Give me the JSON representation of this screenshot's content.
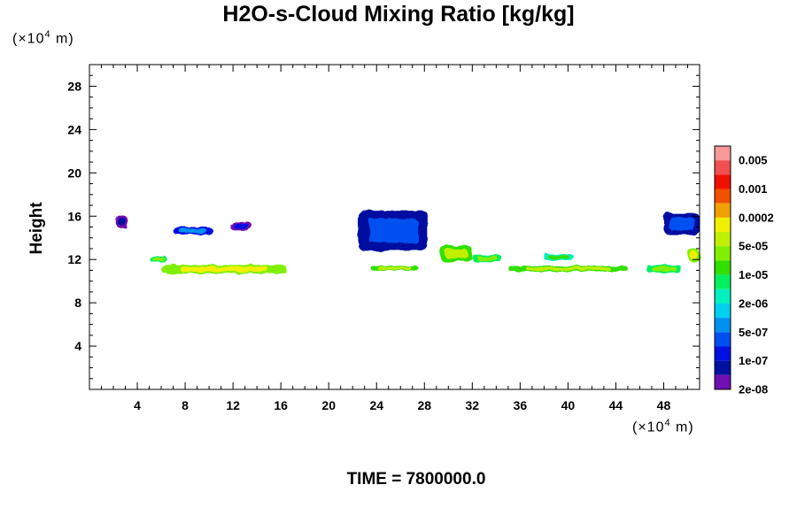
{
  "chart_data": {
    "type": "heatmap",
    "title": "H2O-s-Cloud Mixing Ratio [kg/kg]",
    "ylabel": "Height",
    "x_unit": {
      "prefix": "(×10",
      "exp": "4",
      "suffix": " m)"
    },
    "y_unit": {
      "prefix": "(×10",
      "exp": "4",
      "suffix": " m)"
    },
    "xlim": [
      0,
      51
    ],
    "ylim": [
      0,
      30
    ],
    "x_ticks": [
      4,
      8,
      12,
      16,
      20,
      24,
      28,
      32,
      36,
      40,
      44,
      48
    ],
    "y_ticks": [
      4,
      8,
      12,
      16,
      20,
      24,
      28
    ],
    "colorbar": {
      "levels": [
        "0.005",
        "0.001",
        "0.0002",
        "5e-05",
        "1e-05",
        "2e-06",
        "5e-07",
        "1e-07",
        "2e-08"
      ],
      "colors": [
        "#f89898",
        "#f05050",
        "#f01000",
        "#f05000",
        "#f0a000",
        "#f0f000",
        "#c0f000",
        "#80f000",
        "#30e000",
        "#00f060",
        "#00f0c0",
        "#00d0f0",
        "#0090f0",
        "#0050f0",
        "#0010e0",
        "#0010a0",
        "#7010b0"
      ]
    },
    "cloud_regions": [
      {
        "x": [
          2.2,
          3.2
        ],
        "y": [
          14.9,
          16.1
        ],
        "level_index": 16
      },
      {
        "x": [
          7.0,
          10.3
        ],
        "y": [
          14.3,
          15.0
        ],
        "level_index": 13
      },
      {
        "x": [
          11.8,
          13.6
        ],
        "y": [
          14.6,
          15.5
        ],
        "level_index": 15
      },
      {
        "x": [
          5.0,
          6.5
        ],
        "y": [
          11.8,
          12.3
        ],
        "level_index": 8
      },
      {
        "x": [
          6.0,
          16.5
        ],
        "y": [
          10.7,
          11.5
        ],
        "level_index": 6
      },
      {
        "x": [
          22.5,
          28.3
        ],
        "y": [
          12.8,
          16.5
        ],
        "level_index": 14
      },
      {
        "x": [
          23.5,
          27.5
        ],
        "y": [
          11.0,
          11.4
        ],
        "level_index": 7
      },
      {
        "x": [
          29.3,
          32.0
        ],
        "y": [
          11.8,
          13.3
        ],
        "level_index": 7
      },
      {
        "x": [
          32.0,
          34.5
        ],
        "y": [
          11.8,
          12.4
        ],
        "level_index": 8
      },
      {
        "x": [
          35.0,
          45.0
        ],
        "y": [
          10.9,
          11.4
        ],
        "level_index": 7
      },
      {
        "x": [
          38.0,
          40.5
        ],
        "y": [
          11.9,
          12.5
        ],
        "level_index": 9
      },
      {
        "x": [
          46.5,
          49.5
        ],
        "y": [
          10.8,
          11.5
        ],
        "level_index": 8
      },
      {
        "x": [
          48.0,
          51.0
        ],
        "y": [
          14.3,
          16.3
        ],
        "level_index": 14
      },
      {
        "x": [
          50.0,
          51.0
        ],
        "y": [
          11.8,
          13.0
        ],
        "level_index": 6
      }
    ]
  },
  "time_label": "TIME = 7800000.0"
}
